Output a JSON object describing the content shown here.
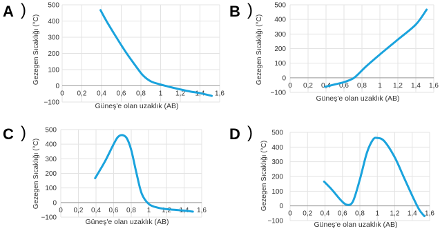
{
  "chart_data": [
    {
      "type": "line",
      "panel_label": "A",
      "xlabel": "Güneş'e olan uzaklık (AB)",
      "ylabel": "Gezegen Sıcaklığı (°C)",
      "xlim": [
        0,
        1.6
      ],
      "ylim": [
        -100,
        500
      ],
      "xticks": [
        "0",
        "0,2",
        "0,4",
        "0,6",
        "0,8",
        "1",
        "1,2",
        "1,4",
        "1,6"
      ],
      "yticks": [
        "500",
        "400",
        "300",
        "200",
        "100",
        "0",
        "−100"
      ],
      "grid": true,
      "color": "#1aa3dd",
      "points": [
        [
          0.39,
          467
        ],
        [
          0.45,
          400
        ],
        [
          0.55,
          300
        ],
        [
          0.65,
          205
        ],
        [
          0.75,
          120
        ],
        [
          0.82,
          65
        ],
        [
          0.9,
          28
        ],
        [
          1.0,
          8
        ],
        [
          1.1,
          -8
        ],
        [
          1.2,
          -22
        ],
        [
          1.3,
          -35
        ],
        [
          1.4,
          -45
        ],
        [
          1.52,
          -62
        ]
      ]
    },
    {
      "type": "line",
      "panel_label": "B",
      "xlabel": "Güneş'e olan uzaklık (AB)",
      "ylabel": "Gezegen Sıcaklığı (°C)",
      "xlim": [
        0,
        1.6
      ],
      "ylim": [
        -100,
        500
      ],
      "xticks": [
        "0",
        "0,2",
        "0,4",
        "0,6",
        "0,8",
        "1",
        "1,2",
        "1,4",
        "1,6"
      ],
      "yticks": [
        "500",
        "400",
        "300",
        "200",
        "100",
        "0",
        "−100"
      ],
      "grid": true,
      "color": "#1aa3dd",
      "points": [
        [
          0.39,
          -62
        ],
        [
          0.5,
          -45
        ],
        [
          0.6,
          -30
        ],
        [
          0.7,
          -5
        ],
        [
          0.75,
          20
        ],
        [
          0.85,
          80
        ],
        [
          1.0,
          160
        ],
        [
          1.2,
          262
        ],
        [
          1.4,
          365
        ],
        [
          1.52,
          467
        ]
      ]
    },
    {
      "type": "line",
      "panel_label": "C",
      "xlabel": "Güneş'e olan uzaklık (AB)",
      "ylabel": "Gezegen Sıcaklığı (°C)",
      "xlim": [
        0,
        1.6
      ],
      "ylim": [
        -100,
        500
      ],
      "xticks": [
        "0",
        "0,2",
        "0,4",
        "0,6",
        "0,8",
        "1",
        "1,2",
        "1,4",
        "1,6"
      ],
      "yticks": [
        "500",
        "400",
        "300",
        "200",
        "100",
        "0",
        "−100"
      ],
      "grid": true,
      "color": "#1aa3dd",
      "points": [
        [
          0.39,
          167
        ],
        [
          0.5,
          280
        ],
        [
          0.6,
          400
        ],
        [
          0.65,
          450
        ],
        [
          0.7,
          462
        ],
        [
          0.75,
          440
        ],
        [
          0.8,
          360
        ],
        [
          0.86,
          200
        ],
        [
          0.92,
          60
        ],
        [
          1.0,
          -10
        ],
        [
          1.1,
          -35
        ],
        [
          1.2,
          -45
        ],
        [
          1.3,
          -50
        ],
        [
          1.4,
          -55
        ],
        [
          1.5,
          -62
        ]
      ]
    },
    {
      "type": "line",
      "panel_label": "D",
      "xlabel": "Güneş'e olan uzaklık (AB)",
      "ylabel": "Gezegen Sıcaklığı (°C)",
      "xlim": [
        0,
        1.6
      ],
      "ylim": [
        -100,
        500
      ],
      "xticks": [
        "0",
        "0,2",
        "0,4",
        "0,6",
        "0,8",
        "1",
        "1,2",
        "1,4",
        "1,6"
      ],
      "yticks": [
        "500",
        "400",
        "300",
        "200",
        "100",
        "0",
        "−100"
      ],
      "grid": true,
      "color": "#1aa3dd",
      "points": [
        [
          0.39,
          165
        ],
        [
          0.48,
          110
        ],
        [
          0.58,
          40
        ],
        [
          0.65,
          8
        ],
        [
          0.72,
          30
        ],
        [
          0.8,
          180
        ],
        [
          0.88,
          360
        ],
        [
          0.95,
          450
        ],
        [
          1.0,
          462
        ],
        [
          1.08,
          440
        ],
        [
          1.2,
          330
        ],
        [
          1.3,
          200
        ],
        [
          1.4,
          70
        ],
        [
          1.48,
          -25
        ],
        [
          1.54,
          -70
        ]
      ]
    }
  ]
}
